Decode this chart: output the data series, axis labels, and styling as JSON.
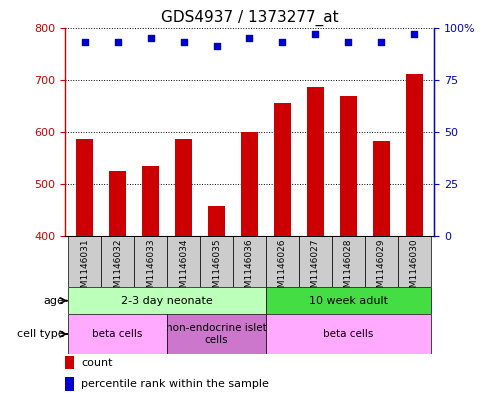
{
  "title": "GDS4937 / 1373277_at",
  "samples": [
    "GSM1146031",
    "GSM1146032",
    "GSM1146033",
    "GSM1146034",
    "GSM1146035",
    "GSM1146036",
    "GSM1146026",
    "GSM1146027",
    "GSM1146028",
    "GSM1146029",
    "GSM1146030"
  ],
  "counts": [
    585,
    525,
    535,
    585,
    457,
    600,
    655,
    685,
    668,
    582,
    710
  ],
  "percentiles": [
    93,
    93,
    95,
    93,
    91,
    95,
    93,
    97,
    93,
    93,
    97
  ],
  "ylim_left": [
    400,
    800
  ],
  "ylim_right": [
    0,
    100
  ],
  "yticks_left": [
    400,
    500,
    600,
    700,
    800
  ],
  "yticks_right": [
    0,
    25,
    50,
    75,
    100
  ],
  "bar_color": "#cc0000",
  "dot_color": "#0000cc",
  "bar_bottom": 400,
  "age_groups": [
    {
      "label": "2-3 day neonate",
      "start": 0,
      "end": 6,
      "color": "#bbffbb"
    },
    {
      "label": "10 week adult",
      "start": 6,
      "end": 11,
      "color": "#44dd44"
    }
  ],
  "cell_type_groups": [
    {
      "label": "beta cells",
      "start": 0,
      "end": 3,
      "color": "#ffaaff"
    },
    {
      "label": "non-endocrine islet\ncells",
      "start": 3,
      "end": 6,
      "color": "#cc77cc"
    },
    {
      "label": "beta cells",
      "start": 6,
      "end": 11,
      "color": "#ffaaff"
    }
  ],
  "legend_count_label": "count",
  "legend_percentile_label": "percentile rank within the sample",
  "bar_color_red": "#cc0000",
  "dot_color_blue": "#0000cc",
  "axis_color_left": "#cc0000",
  "axis_color_right": "#0000cc",
  "bg_color": "#ffffff",
  "sample_bg": "#cccccc",
  "border_color": "#000000"
}
